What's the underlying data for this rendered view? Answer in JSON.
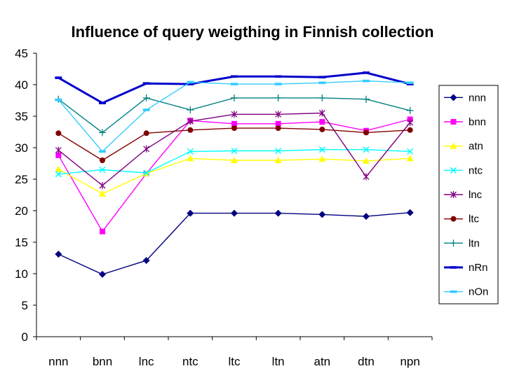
{
  "chart_data": {
    "type": "line",
    "title": "Influence of query weigthing in Finnish collection",
    "xlabel": "",
    "ylabel": "",
    "ylim": [
      0,
      45
    ],
    "yticks": [
      0,
      5,
      10,
      15,
      20,
      25,
      30,
      35,
      40,
      45
    ],
    "grid": false,
    "legend_position": "right",
    "categories": [
      "nnn",
      "bnn",
      "lnc",
      "ntc",
      "ltc",
      "ltn",
      "atn",
      "dtn",
      "npn"
    ],
    "series": [
      {
        "name": "nnn",
        "color": "#000080",
        "marker": "diamond",
        "values": [
          13.1,
          9.9,
          12.1,
          19.6,
          19.6,
          19.6,
          19.4,
          19.1,
          19.7
        ]
      },
      {
        "name": "bnn",
        "color": "#ff00ff",
        "marker": "square",
        "values": [
          28.8,
          16.7,
          25.9,
          34.3,
          33.8,
          33.8,
          34.1,
          32.7,
          34.5
        ]
      },
      {
        "name": "atn",
        "color": "#ffff00",
        "marker": "triangle",
        "values": [
          26.6,
          22.7,
          25.9,
          28.3,
          28.0,
          28.0,
          28.2,
          27.9,
          28.3
        ]
      },
      {
        "name": "ntc",
        "color": "#00ffff",
        "marker": "x",
        "values": [
          25.8,
          26.5,
          26.0,
          29.4,
          29.5,
          29.5,
          29.7,
          29.7,
          29.4
        ]
      },
      {
        "name": "lnc",
        "color": "#800080",
        "marker": "star",
        "values": [
          29.6,
          24.0,
          29.8,
          34.2,
          35.3,
          35.3,
          35.5,
          25.4,
          34.0
        ]
      },
      {
        "name": "ltc",
        "color": "#800000",
        "marker": "circle",
        "values": [
          32.3,
          28.0,
          32.3,
          32.8,
          33.1,
          33.1,
          32.9,
          32.4,
          32.8
        ]
      },
      {
        "name": "ltn",
        "color": "#008080",
        "marker": "plus",
        "values": [
          37.7,
          32.4,
          37.9,
          36.0,
          37.9,
          37.9,
          37.9,
          37.7,
          35.9
        ]
      },
      {
        "name": "nRn",
        "color": "#0000cc",
        "marker": "dash",
        "values": [
          41.1,
          37.1,
          40.2,
          40.1,
          41.3,
          41.3,
          41.2,
          41.9,
          40.1
        ]
      },
      {
        "name": "nOn",
        "color": "#33ccff",
        "marker": "dash",
        "values": [
          37.6,
          29.4,
          36.0,
          40.4,
          40.1,
          40.1,
          40.3,
          40.6,
          40.3
        ]
      }
    ]
  }
}
